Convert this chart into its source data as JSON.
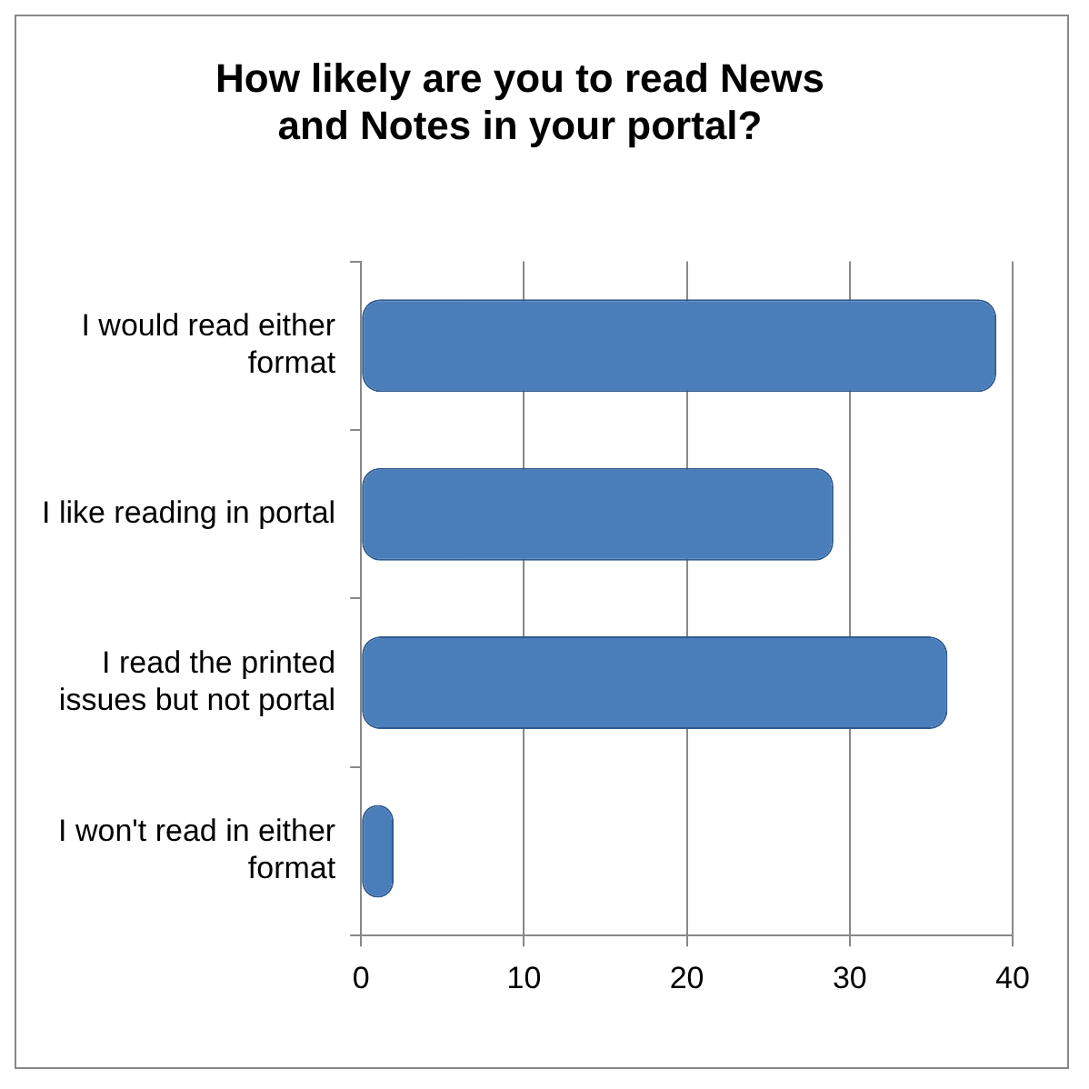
{
  "chart_data": {
    "type": "bar",
    "orientation": "horizontal",
    "title": "How likely are you to read News and Notes in your portal?",
    "categories": [
      "I would read either format",
      "I like reading in portal",
      "I read the printed issues but not portal",
      "I won't read in either format"
    ],
    "values": [
      39,
      29,
      36,
      2
    ],
    "color": "#4a7ebb",
    "xlim": [
      0,
      40
    ],
    "xticks": [
      0,
      10,
      20,
      30,
      40
    ],
    "grid": "x",
    "legend": false
  }
}
